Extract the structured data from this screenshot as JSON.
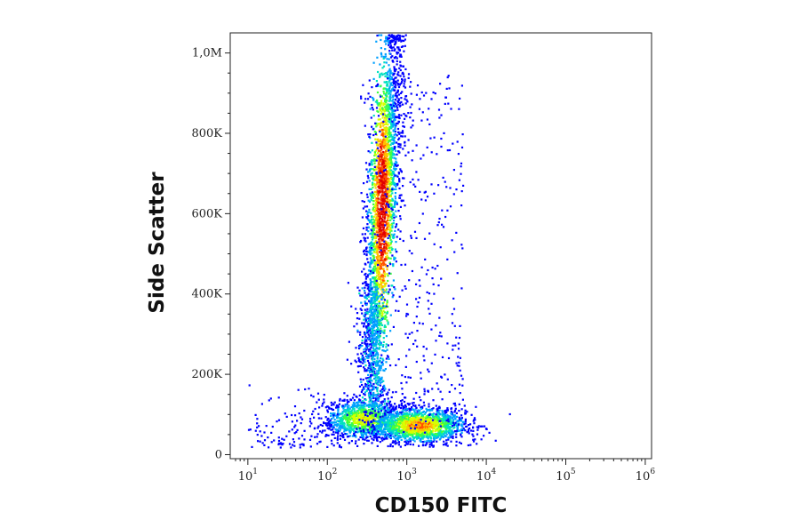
{
  "chart_data": {
    "type": "scatter",
    "title": "",
    "xlabel": "CD150 FITC",
    "ylabel": "Side Scatter",
    "x_scale": "log",
    "xlim": [
      6,
      1200000
    ],
    "ylim": [
      -10000,
      1050000
    ],
    "x_ticks": [
      {
        "value": 10,
        "base": "10",
        "exp": "1"
      },
      {
        "value": 100,
        "base": "10",
        "exp": "2"
      },
      {
        "value": 1000,
        "base": "10",
        "exp": "3"
      },
      {
        "value": 10000,
        "base": "10",
        "exp": "4"
      },
      {
        "value": 100000,
        "base": "10",
        "exp": "5"
      },
      {
        "value": 1000000,
        "base": "10",
        "exp": "6"
      }
    ],
    "y_ticks": [
      {
        "value": 0,
        "label": "0"
      },
      {
        "value": 200000,
        "label": "200K"
      },
      {
        "value": 400000,
        "label": "400K"
      },
      {
        "value": 600000,
        "label": "600K"
      },
      {
        "value": 800000,
        "label": "800K"
      },
      {
        "value": 1000000,
        "label": "1,0M"
      }
    ],
    "grid": false,
    "legend": "none",
    "colormap": [
      "#0000ff",
      "#00a0ff",
      "#00e0c0",
      "#40ff40",
      "#d8ff00",
      "#ffc000",
      "#ff5000",
      "#e00000"
    ],
    "populations": [
      {
        "name": "high side scatter population",
        "x_log_center": 2.68,
        "y_center": 620000,
        "x_log_spread": 0.09,
        "y_spread": 140000,
        "peak_density": 1.0
      },
      {
        "name": "low side scatter population A",
        "x_log_center": 2.45,
        "y_center": 90000,
        "x_log_spread": 0.25,
        "y_spread": 25000,
        "peak_density": 0.6
      },
      {
        "name": "low side scatter population B",
        "x_log_center": 3.15,
        "y_center": 75000,
        "x_log_spread": 0.3,
        "y_spread": 22000,
        "peak_density": 0.75
      }
    ]
  }
}
